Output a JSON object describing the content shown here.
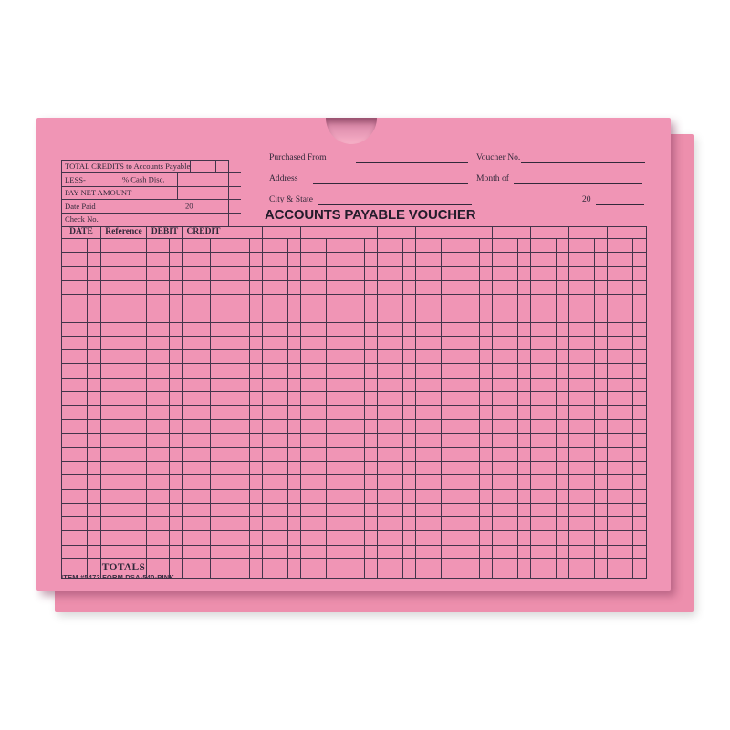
{
  "title": "ACCOUNTS PAYABLE VOUCHER",
  "colors": {
    "envelope_front": "#f095b5",
    "envelope_back": "#ed8fad",
    "print_line": "#43344a"
  },
  "summary_box": {
    "row1_label": "TOTAL CREDITS to Accounts Payable",
    "row2_label": "LESS-",
    "row2_mid": "% Cash Disc.",
    "row3_label": "PAY NET AMOUNT",
    "row4_label": "Date Paid",
    "row4_year": "20",
    "row5_label": "Check No."
  },
  "header_fields": {
    "purchased_from": "Purchased From",
    "voucher_no": "Voucher No.",
    "address": "Address",
    "month_of": "Month of",
    "city_state": "City & State",
    "year_prefix": "20"
  },
  "grid": {
    "column_headers": [
      "DATE",
      "Reference",
      "DEBIT",
      "CREDIT"
    ],
    "totals_label": "TOTALS",
    "body_row_count": 23,
    "unlabeled_header_groups": 11
  },
  "footer": {
    "item_text": "ITEM #5473  FORM DSA-540-PINK"
  }
}
